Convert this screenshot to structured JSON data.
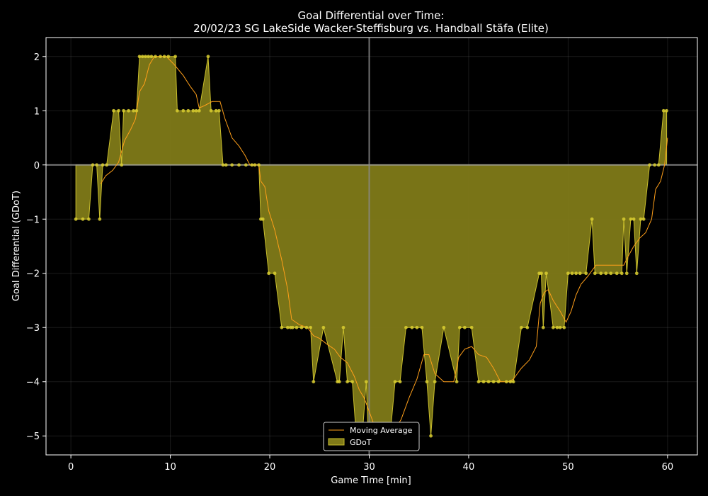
{
  "chart_data": {
    "type": "area",
    "title_line1": "Goal Differential over Time:",
    "title_line2": "20/02/23 SG LakeSide Wacker-Steffisburg  vs.  Handball Stäfa (Elite)",
    "xlabel": "Game Time [min]",
    "ylabel": "Goal Differential (GDoT)",
    "xlim": [
      -2.5,
      63
    ],
    "ylim": [
      -5.35,
      2.35
    ],
    "xticks": [
      0,
      10,
      20,
      30,
      40,
      50,
      60
    ],
    "xtick_labels": [
      "0",
      "10",
      "20",
      "30",
      "40",
      "50",
      "60"
    ],
    "yticks": [
      -5,
      -4,
      -3,
      -2,
      -1,
      0,
      1,
      2
    ],
    "ytick_labels": [
      "−5",
      "−4",
      "−3",
      "−2",
      "−1",
      "0",
      "1",
      "2"
    ],
    "grid": true,
    "halftime_marker_x": 30,
    "legend_position": "bottom-center",
    "colors": {
      "background": "#000000",
      "axes_frame": "#ffffff",
      "fill": "#807a18",
      "fill_edge": "#c9be2c",
      "points": "#d8cc30",
      "moving_average": "#ff9f1a",
      "zero_line": "#9a9a9a",
      "halftime_line": "#8a8a8a"
    },
    "series": [
      {
        "name": "GDoT",
        "x": [
          0.5,
          1.2,
          1.8,
          2.2,
          2.6,
          2.9,
          3.2,
          3.6,
          4.3,
          4.8,
          5.1,
          5.3,
          5.8,
          6.3,
          6.6,
          6.9,
          7.2,
          7.5,
          7.8,
          8.1,
          8.5,
          9.0,
          9.4,
          9.8,
          10.5,
          10.7,
          11.3,
          11.8,
          12.3,
          12.6,
          12.9,
          13.8,
          14.1,
          14.6,
          14.9,
          15.3,
          15.6,
          16.2,
          16.9,
          17.6,
          18.2,
          18.5,
          18.9,
          19.1,
          19.3,
          19.9,
          20.5,
          21.2,
          21.8,
          22.1,
          22.3,
          22.7,
          23.2,
          23.7,
          24.1,
          24.4,
          25.4,
          26.8,
          27.0,
          27.4,
          27.8,
          28.3,
          28.7,
          29.3,
          29.7,
          29.9,
          30.3,
          30.7,
          31.2,
          31.6,
          32.1,
          32.6,
          33.1,
          33.7,
          34.3,
          34.8,
          35.3,
          35.8,
          36.2,
          36.6,
          37.5,
          38.8,
          39.1,
          39.6,
          40.3,
          41.0,
          41.5,
          42.0,
          42.5,
          43.0,
          43.8,
          44.2,
          44.5,
          45.3,
          45.9,
          47.1,
          47.3,
          47.5,
          47.8,
          48.5,
          48.9,
          49.2,
          49.6,
          50.0,
          50.4,
          50.8,
          51.2,
          51.8,
          52.4,
          52.7,
          53.3,
          53.8,
          54.3,
          54.9,
          55.4,
          55.6,
          55.9,
          56.3,
          56.6,
          56.9,
          57.3,
          57.6,
          58.2,
          58.7,
          59.1,
          59.6,
          59.9
        ],
        "values": [
          -1,
          -1,
          -1,
          0,
          0,
          -1,
          0,
          0,
          1,
          1,
          0,
          1,
          1,
          1,
          1,
          2,
          2,
          2,
          2,
          2,
          2,
          2,
          2,
          2,
          2,
          1,
          1,
          1,
          1,
          1,
          1,
          2,
          1,
          1,
          1,
          0,
          0,
          0,
          0,
          0,
          0,
          0,
          0,
          -1,
          -1,
          -2,
          -2,
          -3,
          -3,
          -3,
          -3,
          -3,
          -3,
          -3,
          -3,
          -4,
          -3,
          -4,
          -4,
          -3,
          -4,
          -4,
          -5,
          -5,
          -4,
          -5,
          -5,
          -5,
          -5,
          -5,
          -5,
          -4,
          -4,
          -3,
          -3,
          -3,
          -3,
          -4,
          -5,
          -4,
          -3,
          -4,
          -3,
          -3,
          -3,
          -4,
          -4,
          -4,
          -4,
          -4,
          -4,
          -4,
          -4,
          -3,
          -3,
          -2,
          -2,
          -3,
          -2,
          -3,
          -3,
          -3,
          -3,
          -2,
          -2,
          -2,
          -2,
          -2,
          -1,
          -2,
          -2,
          -2,
          -2,
          -2,
          -2,
          -1,
          -2,
          -1,
          -1,
          -2,
          -1,
          -1,
          0,
          0,
          0,
          1,
          1
        ]
      },
      {
        "name": "Moving Average",
        "x": [
          3.0,
          3.5,
          4.2,
          4.8,
          5.4,
          6.0,
          6.5,
          6.9,
          7.4,
          7.9,
          8.4,
          9.0,
          9.6,
          10.4,
          11.3,
          12.0,
          12.6,
          12.9,
          13.5,
          14.2,
          15.0,
          15.5,
          16.2,
          16.9,
          17.5,
          18.0,
          18.5,
          18.9,
          19.1,
          19.5,
          19.9,
          20.5,
          21.2,
          21.8,
          22.2,
          23.0,
          23.8,
          24.4,
          25.0,
          25.7,
          26.5,
          27.1,
          27.8,
          28.5,
          29.0,
          29.5,
          30.0,
          30.5,
          31.0,
          31.5,
          32.5,
          33.2,
          34.0,
          34.8,
          35.5,
          36.0,
          36.6,
          37.5,
          38.5,
          39.0,
          39.6,
          40.3,
          41.0,
          41.8,
          42.5,
          43.2,
          44.0,
          44.5,
          45.3,
          46.1,
          46.8,
          47.2,
          47.6,
          48.0,
          48.5,
          49.2,
          49.8,
          50.3,
          50.8,
          51.3,
          52.0,
          52.8,
          53.5,
          54.3,
          55.0,
          55.6,
          56.0,
          56.6,
          57.2,
          57.8,
          58.4,
          58.8,
          59.3,
          59.7,
          60.0
        ],
        "values": [
          -0.35,
          -0.2,
          -0.1,
          0.05,
          0.45,
          0.65,
          0.85,
          1.35,
          1.5,
          1.85,
          2.0,
          2.0,
          2.0,
          1.85,
          1.65,
          1.45,
          1.3,
          1.05,
          1.1,
          1.17,
          1.17,
          0.85,
          0.5,
          0.35,
          0.18,
          0.0,
          0.0,
          0.0,
          -0.3,
          -0.4,
          -0.85,
          -1.2,
          -1.75,
          -2.3,
          -2.85,
          -2.95,
          -3.0,
          -3.15,
          -3.2,
          -3.3,
          -3.4,
          -3.55,
          -3.65,
          -3.9,
          -4.15,
          -4.3,
          -4.55,
          -4.8,
          -5.0,
          -4.95,
          -4.9,
          -4.7,
          -4.3,
          -3.95,
          -3.5,
          -3.5,
          -3.85,
          -4.0,
          -4.0,
          -3.55,
          -3.4,
          -3.35,
          -3.5,
          -3.55,
          -3.75,
          -4.0,
          -4.0,
          -3.95,
          -3.75,
          -3.6,
          -3.35,
          -2.55,
          -2.35,
          -2.3,
          -2.5,
          -2.7,
          -2.9,
          -2.7,
          -2.4,
          -2.2,
          -2.05,
          -1.85,
          -1.85,
          -1.85,
          -1.85,
          -1.85,
          -1.7,
          -1.5,
          -1.35,
          -1.25,
          -1.0,
          -0.45,
          -0.3,
          0.0,
          0.5
        ]
      }
    ]
  }
}
